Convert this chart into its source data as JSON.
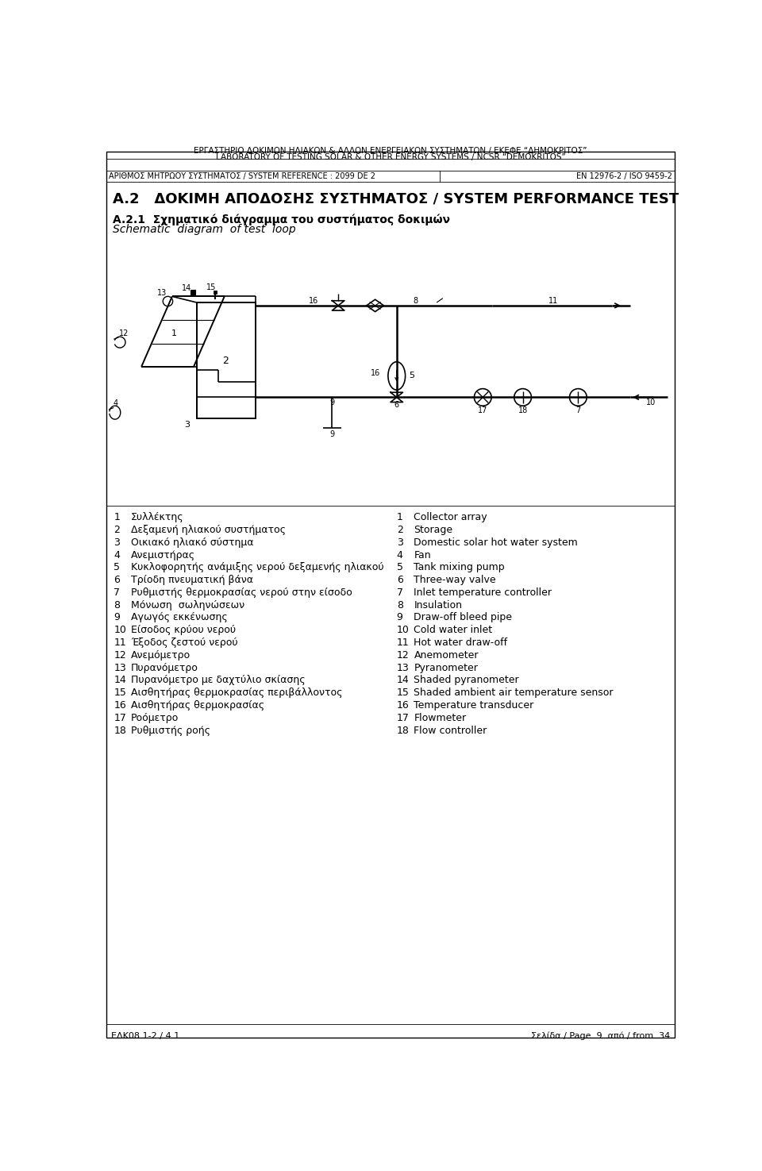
{
  "header_line1": "ΕΡΓΑΣΤΗΡΙΟ ΔΟΚΙΜΩΝ ΗΛΙΑΚΩΝ & ΑΛΛΩΝ ΕΝΕΡΓΕΙΑΚΩΝ ΣΥΣΤΗΜΑΤΩΝ / ΕΚΕΦΕ “ΔΗΜΟΚΡΙΤΟΣ”",
  "header_line2": "LABORATORY OF TESTING SOLAR & OTHER ENERGY SYSTEMS / NCSR “DEMOKRITOS”",
  "header_line3_left": "ΑΡΙΘΜΟΣ ΜΗΤΡΩΟΥ ΣΥΣΤΗΜΑΤΟΣ / SYSTEM REFERENCE : 2099 DE 2",
  "header_line3_right": "EN 12976-2 / ISO 9459-2",
  "section_title": "A.2   ΔΟΚΙΜΗ ΑΠΟΔΟΣΗΣ ΣΥΣΤΗΜΑΤΟΣ / SYSTEM PERFORMANCE TEST",
  "subsection_title_greek": "A.2.1  Σχηματικό διάγραμμα του συστήματος δοκιμών",
  "subsection_title_english": "Schematic  diagram  of test  loop",
  "footer_left": "ΕΔΚ08.1-2 / 4.1",
  "footer_right": "Σελίδα / Page  9  από / from  34",
  "items": [
    {
      "num": 1,
      "greek": "Συλλέκτης",
      "english": "Collector array"
    },
    {
      "num": 2,
      "greek": "Δεξαμενή ηλιακού συστήματος",
      "english": "Storage"
    },
    {
      "num": 3,
      "greek": "Οικιακό ηλιακό σύστημα",
      "english": "Domestic solar hot water system"
    },
    {
      "num": 4,
      "greek": "Ανεμιστήρας",
      "english": "Fan"
    },
    {
      "num": 5,
      "greek": "Κυκλοφορητής ανάμιξης νερού δεξαμενής ηλιακού",
      "english": "Tank mixing pump"
    },
    {
      "num": 6,
      "greek": "Τρίοδη πνευματική βάνα",
      "english": "Three-way valve"
    },
    {
      "num": 7,
      "greek": "Ρυθμιστής θερμοκρασίας νερού στην είσοδο",
      "english": "Inlet temperature controller"
    },
    {
      "num": 8,
      "greek": "Μόνωση  σωληνώσεων",
      "english": "Insulation"
    },
    {
      "num": 9,
      "greek": "Αγωγός εκκένωσης",
      "english": "Draw-off bleed pipe"
    },
    {
      "num": 10,
      "greek": "Είσοδος κρύου νερού",
      "english": "Cold water inlet"
    },
    {
      "num": 11,
      "greek": "Έξοδος ζεστού νερού",
      "english": "Hot water draw-off"
    },
    {
      "num": 12,
      "greek": "Ανεμόμετρο",
      "english": "Anemometer"
    },
    {
      "num": 13,
      "greek": "Πυρανόμετρο",
      "english": "Pyranometer"
    },
    {
      "num": 14,
      "greek": "Πυρανόμετρο με δαχτύλιο σκίασης",
      "english": "Shaded pyranometer"
    },
    {
      "num": 15,
      "greek": "Αισθητήρας θερμοκρασίας περιβάλλοντος",
      "english": "Shaded ambient air temperature sensor"
    },
    {
      "num": 16,
      "greek": "Αισθητήρας θερμοκρασίας",
      "english": "Temperature transducer"
    },
    {
      "num": 17,
      "greek": "Ροόμετρο",
      "english": "Flowmeter"
    },
    {
      "num": 18,
      "greek": "Ρυθμιστής ροής",
      "english": "Flow controller"
    }
  ],
  "bg_color": "#ffffff",
  "text_color": "#000000",
  "header_fontsize": 7.5,
  "section_fontsize": 13,
  "subsection_fontsize": 10,
  "table_fontsize": 9,
  "footer_fontsize": 8
}
